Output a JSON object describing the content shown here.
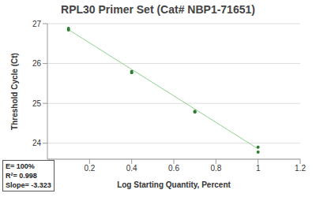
{
  "chart_data": {
    "type": "scatter",
    "title": "RPL30 Primer Set (Cat# NBP1-71651)",
    "x_label": "Log Starting Quantity, Percent",
    "y_label": "Threshold Cycle (Ct)",
    "x": [
      0.1,
      0.1,
      0.4,
      0.4,
      0.7,
      0.7,
      1.0,
      1.0
    ],
    "values": [
      26.88,
      26.84,
      25.8,
      25.77,
      24.8,
      24.78,
      23.9,
      23.78
    ],
    "color": "#2e7d32",
    "marker": "circle",
    "trendline": {
      "type": "line",
      "x": [
        0.1,
        1.0
      ],
      "values": [
        26.85,
        23.86
      ],
      "color": "#8fd18f"
    },
    "xlim": [
      0,
      1.2
    ],
    "xticks": [
      0.2,
      0.4,
      0.6,
      0.8,
      1.0,
      1.2
    ],
    "ylim": [
      23.6,
      27
    ],
    "yticks": [
      24,
      25,
      26,
      27
    ],
    "grid": true,
    "annotations": [
      "E= 100%",
      "R²= 0.998",
      "Slope= -3.323"
    ]
  }
}
